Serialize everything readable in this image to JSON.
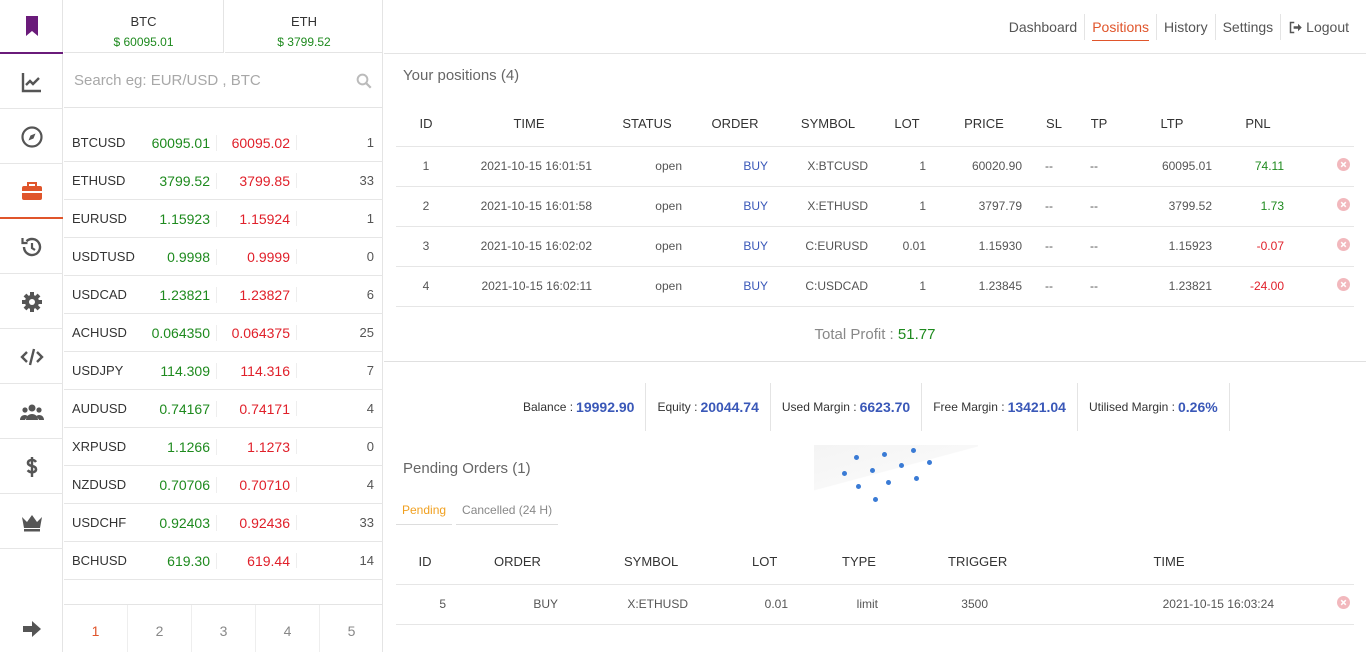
{
  "rail": {
    "items": [
      {
        "name": "bookmark-icon"
      },
      {
        "name": "chart-line-icon"
      },
      {
        "name": "compass-icon"
      },
      {
        "name": "briefcase-icon"
      },
      {
        "name": "history-icon"
      },
      {
        "name": "gear-icon"
      },
      {
        "name": "code-icon"
      },
      {
        "name": "users-icon"
      },
      {
        "name": "dollar-icon"
      },
      {
        "name": "crown-icon"
      },
      {
        "name": "sign-out-icon"
      }
    ]
  },
  "tickers": [
    {
      "name": "BTC",
      "price": "$ 60095.01"
    },
    {
      "name": "ETH",
      "price": "$ 3799.52"
    }
  ],
  "search": {
    "placeholder": "Search eg: EUR/USD , BTC"
  },
  "watchlist": [
    {
      "symbol": "BTCUSD",
      "bid": "60095.01",
      "ask": "60095.02",
      "qty": "1"
    },
    {
      "symbol": "ETHUSD",
      "bid": "3799.52",
      "ask": "3799.85",
      "qty": "33"
    },
    {
      "symbol": "EURUSD",
      "bid": "1.15923",
      "ask": "1.15924",
      "qty": "1"
    },
    {
      "symbol": "USDTUSD",
      "bid": "0.9998",
      "ask": "0.9999",
      "qty": "0"
    },
    {
      "symbol": "USDCAD",
      "bid": "1.23821",
      "ask": "1.23827",
      "qty": "6"
    },
    {
      "symbol": "ACHUSD",
      "bid": "0.064350",
      "ask": "0.064375",
      "qty": "25"
    },
    {
      "symbol": "USDJPY",
      "bid": "114.309",
      "ask": "114.316",
      "qty": "7"
    },
    {
      "symbol": "AUDUSD",
      "bid": "0.74167",
      "ask": "0.74171",
      "qty": "4"
    },
    {
      "symbol": "XRPUSD",
      "bid": "1.1266",
      "ask": "1.1273",
      "qty": "0"
    },
    {
      "symbol": "NZDUSD",
      "bid": "0.70706",
      "ask": "0.70710",
      "qty": "4"
    },
    {
      "symbol": "USDCHF",
      "bid": "0.92403",
      "ask": "0.92436",
      "qty": "33"
    },
    {
      "symbol": "BCHUSD",
      "bid": "619.30",
      "ask": "619.44",
      "qty": "14"
    }
  ],
  "pager": {
    "pages": [
      "1",
      "2",
      "3",
      "4",
      "5"
    ],
    "active": "1"
  },
  "nav": {
    "dashboard": "Dashboard",
    "positions": "Positions",
    "history": "History",
    "settings": "Settings",
    "logout": "Logout"
  },
  "positions": {
    "title": "Your positions (4)",
    "headers": [
      "ID",
      "TIME",
      "STATUS",
      "ORDER",
      "SYMBOL",
      "LOT",
      "PRICE",
      "SL",
      "TP",
      "LTP",
      "PNL"
    ],
    "rows": [
      {
        "id": "1",
        "time": "2021-10-15 16:01:51",
        "status": "open",
        "order": "BUY",
        "symbol": "X:BTCUSD",
        "lot": "1",
        "price": "60020.90",
        "sl": "--",
        "tp": "--",
        "ltp": "60095.01",
        "pnl": "74.11",
        "pnl_sign": "pos"
      },
      {
        "id": "2",
        "time": "2021-10-15 16:01:58",
        "status": "open",
        "order": "BUY",
        "symbol": "X:ETHUSD",
        "lot": "1",
        "price": "3797.79",
        "sl": "--",
        "tp": "--",
        "ltp": "3799.52",
        "pnl": "1.73",
        "pnl_sign": "pos"
      },
      {
        "id": "3",
        "time": "2021-10-15 16:02:02",
        "status": "open",
        "order": "BUY",
        "symbol": "C:EURUSD",
        "lot": "0.01",
        "price": "1.15930",
        "sl": "--",
        "tp": "--",
        "ltp": "1.15923",
        "pnl": "-0.07",
        "pnl_sign": "neg"
      },
      {
        "id": "4",
        "time": "2021-10-15 16:02:11",
        "status": "open",
        "order": "BUY",
        "symbol": "C:USDCAD",
        "lot": "1",
        "price": "1.23845",
        "sl": "--",
        "tp": "--",
        "ltp": "1.23821",
        "pnl": "-24.00",
        "pnl_sign": "neg"
      }
    ],
    "total_label": "Total Profit : ",
    "total_value": "51.77"
  },
  "account": [
    {
      "label": "Balance : ",
      "value": "19992.90"
    },
    {
      "label": "Equity : ",
      "value": "20044.74"
    },
    {
      "label": "Used Margin : ",
      "value": "6623.70"
    },
    {
      "label": "Free Margin : ",
      "value": "13421.04"
    },
    {
      "label": "Utilised Margin : ",
      "value": "0.26%"
    }
  ],
  "pending": {
    "title": "Pending Orders (1)",
    "tabs": [
      "Pending",
      "Cancelled (24 H)"
    ],
    "headers": [
      "ID",
      "ORDER",
      "SYMBOL",
      "LOT",
      "TYPE",
      "TRIGGER",
      "TIME"
    ],
    "rows": [
      {
        "id": "5",
        "order": "BUY",
        "symbol": "X:ETHUSD",
        "lot": "0.01",
        "type": "limit",
        "trigger": "3500",
        "time": "2021-10-15 16:03:24"
      }
    ]
  },
  "colors": {
    "accent": "#e0552b",
    "brand": "#6a1b7a",
    "positive": "#1e8a1e",
    "negative": "#e0202a",
    "link": "#3a58b8"
  }
}
